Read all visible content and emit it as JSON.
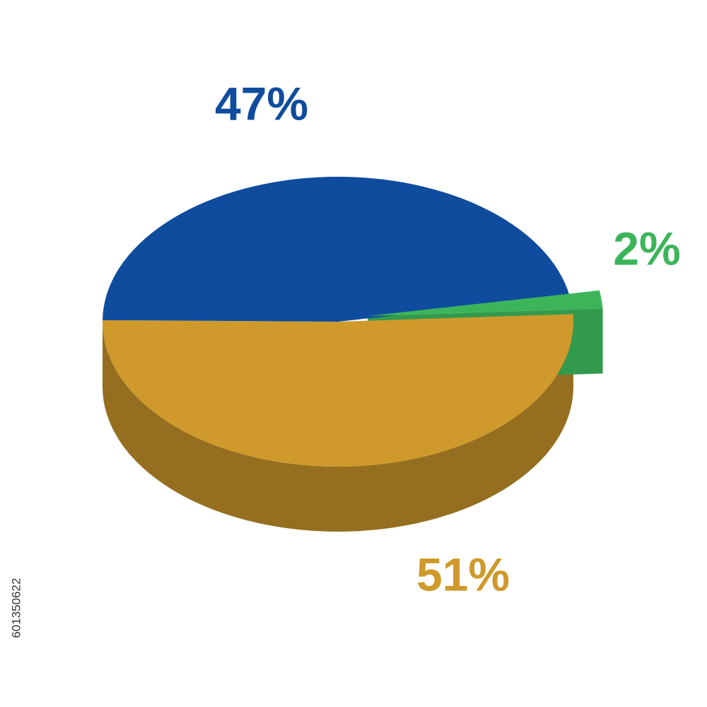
{
  "chart_data": {
    "type": "pie",
    "values": [
      51,
      47,
      2
    ],
    "value_labels": [
      "51%",
      "47%",
      "2%"
    ],
    "colors": [
      "#cf9a2b",
      "#0f4c9e",
      "#3cb55a"
    ]
  },
  "image_id": "601350622"
}
